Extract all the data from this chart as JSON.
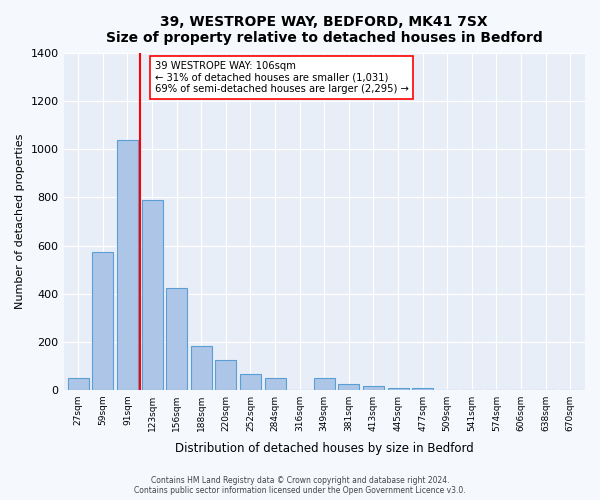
{
  "title": "39, WESTROPE WAY, BEDFORD, MK41 7SX",
  "subtitle": "Size of property relative to detached houses in Bedford",
  "xlabel": "Distribution of detached houses by size in Bedford",
  "ylabel": "Number of detached properties",
  "bar_labels": [
    "27sqm",
    "59sqm",
    "91sqm",
    "123sqm",
    "156sqm",
    "188sqm",
    "220sqm",
    "252sqm",
    "284sqm",
    "316sqm",
    "349sqm",
    "381sqm",
    "413sqm",
    "445sqm",
    "477sqm",
    "509sqm",
    "541sqm",
    "574sqm",
    "606sqm",
    "638sqm",
    "670sqm"
  ],
  "bar_values": [
    50,
    575,
    1040,
    790,
    425,
    180,
    125,
    65,
    50,
    0,
    50,
    25,
    15,
    5,
    5,
    0,
    0,
    0,
    0,
    0,
    0
  ],
  "bar_color": "#adc6e8",
  "bar_edgecolor": "#5a9fd4",
  "ylim": [
    0,
    1400
  ],
  "yticks": [
    0,
    200,
    400,
    600,
    800,
    1000,
    1200,
    1400
  ],
  "red_line_x": 2.5,
  "annotation_title": "39 WESTROPE WAY: 106sqm",
  "annotation_line1": "← 31% of detached houses are smaller (1,031)",
  "annotation_line2": "69% of semi-detached houses are larger (2,295) →",
  "fig_bg_color": "#f5f8fd",
  "ax_bg_color": "#e8eef7",
  "footer_line1": "Contains HM Land Registry data © Crown copyright and database right 2024.",
  "footer_line2": "Contains public sector information licensed under the Open Government Licence v3.0."
}
